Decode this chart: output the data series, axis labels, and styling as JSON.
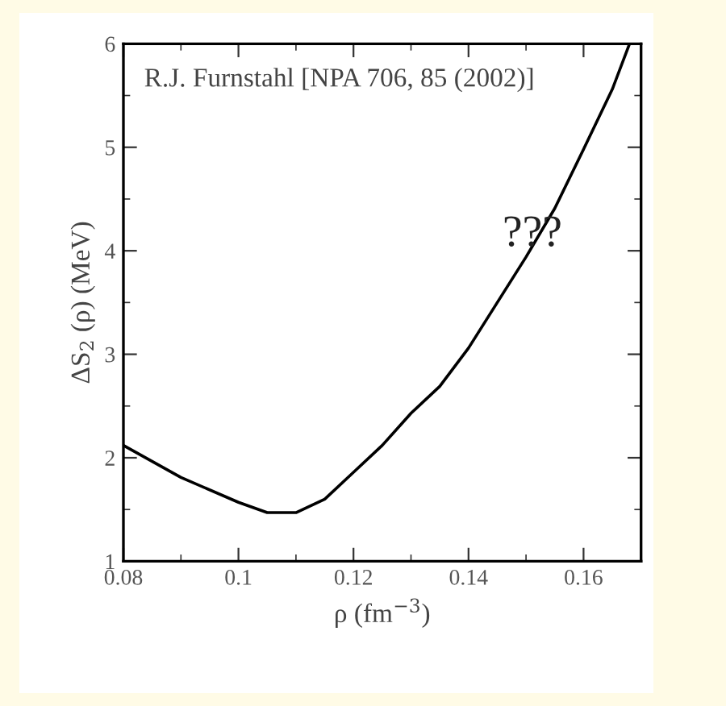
{
  "chart_data": {
    "type": "line",
    "xlabel": "ρ (fm$^{−3}$)",
    "ylabel": "ΔS$_{2}$ (ρ) (MeV)",
    "x": [
      0.08,
      0.09,
      0.1,
      0.105,
      0.11,
      0.115,
      0.12,
      0.125,
      0.13,
      0.135,
      0.14,
      0.145,
      0.15,
      0.155,
      0.16,
      0.165,
      0.168
    ],
    "series": [
      {
        "color": "#000000",
        "values": [
          2.12,
          1.81,
          1.57,
          1.47,
          1.47,
          1.6,
          1.86,
          2.12,
          2.43,
          2.69,
          3.06,
          3.5,
          3.94,
          4.41,
          4.98,
          5.56,
          6.0
        ]
      }
    ],
    "xlim": [
      0.08,
      0.17
    ],
    "ylim": [
      1,
      6
    ],
    "xticks": [
      0.08,
      0.1,
      0.12,
      0.14,
      0.16
    ],
    "yticks": [
      1,
      2,
      3,
      4,
      5,
      6
    ],
    "annotations": [
      "R.J. Furnstahl [NPA 706, 85 (2002)]",
      "???"
    ],
    "grid": false,
    "legend": false,
    "marker": "none",
    "line_style": "solid"
  }
}
